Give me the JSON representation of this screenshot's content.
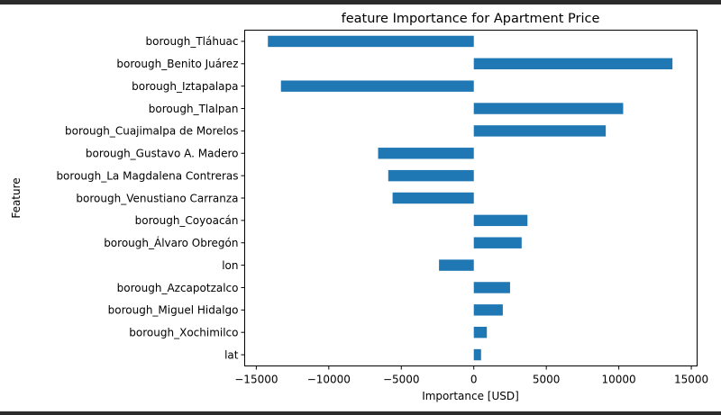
{
  "chart_data": {
    "type": "bar",
    "orientation": "horizontal",
    "title": "feature Importance for Apartment Price",
    "xlabel": "Importance [USD]",
    "ylabel": "Feature",
    "bar_color": "#1f77b4",
    "xlim": [
      -15800,
      15400
    ],
    "xticks": [
      -15000,
      -10000,
      -5000,
      0,
      5000,
      10000,
      15000
    ],
    "xtick_labels": [
      "−15000",
      "−10000",
      "−5000",
      "0",
      "5000",
      "10000",
      "15000"
    ],
    "categories": [
      "borough_Tláhuac",
      "borough_Benito Juárez",
      "borough_Iztapalapa",
      "borough_Tlalpan",
      "borough_Cuajimalpa de Morelos",
      "borough_Gustavo A. Madero",
      "borough_La Magdalena Contreras",
      "borough_Venustiano Carranza",
      "borough_Coyoacán",
      "borough_Álvaro Obregón",
      "lon",
      "borough_Azcapotzalco",
      "borough_Miguel Hidalgo",
      "borough_Xochimilco",
      "lat"
    ],
    "values": [
      -14200,
      13700,
      -13300,
      10300,
      9100,
      -6600,
      -5900,
      -5600,
      3700,
      3300,
      -2400,
      2500,
      2000,
      900,
      500
    ],
    "grid": false,
    "legend": false
  }
}
